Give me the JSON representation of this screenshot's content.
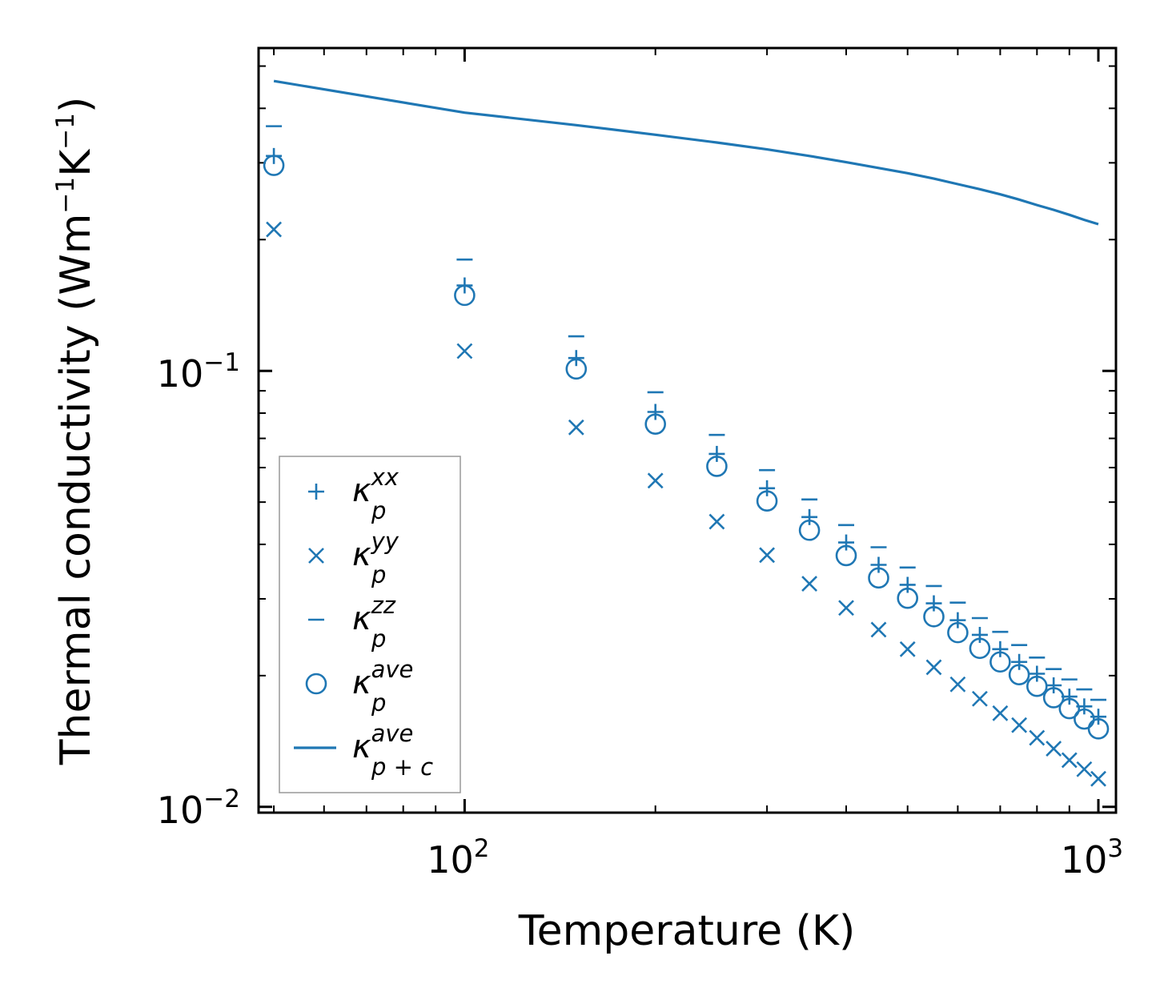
{
  "chart_data": {
    "type": "scatter",
    "xlabel": "Temperature (K)",
    "ylabel": {
      "text": "Thermal conductivity (Wm",
      "sup1": "−1",
      "mid": "K",
      "sup2": "−1",
      "end": ")"
    },
    "xscale": "log",
    "yscale": "log",
    "xlim": [
      47.3,
      1066
    ],
    "ylim": [
      0.0097,
      0.55
    ],
    "x_ticks": [
      {
        "value": 100,
        "base": "10",
        "exp": "2"
      },
      {
        "value": 1000,
        "base": "10",
        "exp": "3"
      }
    ],
    "y_ticks": [
      {
        "value": 0.1,
        "base": "10",
        "exp": "−1"
      },
      {
        "value": 0.01,
        "base": "10",
        "exp": "−2"
      }
    ],
    "grid": false,
    "legend_position": "lower-left",
    "color": "#1f77b4",
    "x": [
      50,
      100,
      150,
      200,
      250,
      300,
      350,
      400,
      450,
      500,
      550,
      600,
      650,
      700,
      750,
      800,
      850,
      900,
      950,
      1000
    ],
    "series": [
      {
        "name": "κ_p^xx",
        "label": "κ",
        "sub": "p",
        "sup": "xx",
        "marker": "plus",
        "values": [
          0.311,
          0.157,
          0.107,
          0.0805,
          0.0645,
          0.0538,
          0.0462,
          0.0404,
          0.0359,
          0.0323,
          0.0293,
          0.0268,
          0.0248,
          0.023,
          0.0215,
          0.0202,
          0.019,
          0.0179,
          0.017,
          0.0161
        ]
      },
      {
        "name": "κ_p^yy",
        "label": "κ",
        "sub": "p",
        "sup": "yy",
        "marker": "x",
        "values": [
          0.211,
          0.111,
          0.0742,
          0.056,
          0.0451,
          0.0378,
          0.0325,
          0.0286,
          0.0255,
          0.023,
          0.0209,
          0.0191,
          0.0177,
          0.0164,
          0.0154,
          0.0144,
          0.0136,
          0.0128,
          0.0122,
          0.0116
        ]
      },
      {
        "name": "κ_p^zz",
        "label": "κ",
        "sub": "p",
        "sup": "zz",
        "marker": "hline",
        "values": [
          0.364,
          0.18,
          0.12,
          0.0893,
          0.0713,
          0.0592,
          0.0507,
          0.0443,
          0.0394,
          0.0354,
          0.0321,
          0.0294,
          0.0271,
          0.0252,
          0.0235,
          0.022,
          0.0207,
          0.0196,
          0.0186,
          0.0176
        ]
      },
      {
        "name": "κ_p^ave",
        "label": "κ",
        "sub": "p",
        "sup": "ave",
        "marker": "circle",
        "values": [
          0.296,
          0.149,
          0.101,
          0.0755,
          0.0604,
          0.0503,
          0.0431,
          0.0377,
          0.0335,
          0.0301,
          0.0273,
          0.0251,
          0.0231,
          0.0215,
          0.0201,
          0.0189,
          0.0178,
          0.0168,
          0.0159,
          0.0151
        ]
      },
      {
        "name": "κ_p+c^ave",
        "label": "κ",
        "sub": "p + c",
        "sup": "ave",
        "marker": "line",
        "values": [
          0.462,
          0.391,
          0.366,
          0.348,
          0.334,
          0.322,
          0.311,
          0.301,
          0.292,
          0.284,
          0.276,
          0.268,
          0.261,
          0.254,
          0.247,
          0.24,
          0.234,
          0.228,
          0.222,
          0.217
        ]
      }
    ]
  }
}
